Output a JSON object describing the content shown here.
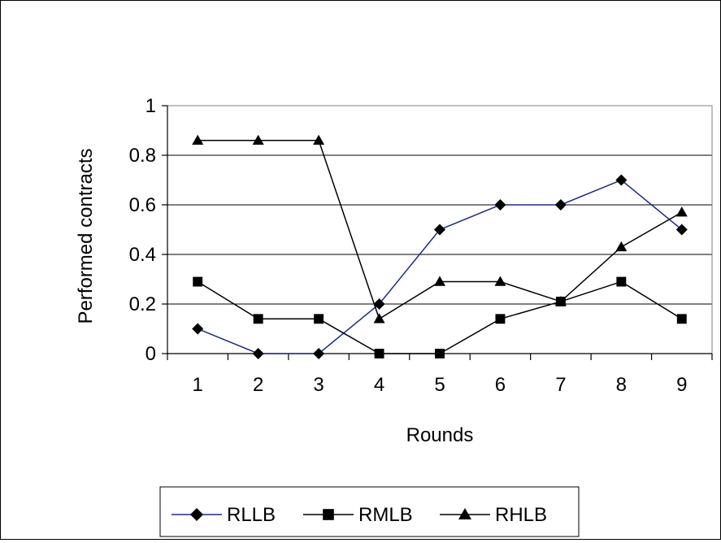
{
  "chart_data": {
    "type": "line",
    "title": "",
    "xlabel": "Rounds",
    "ylabel": "Performed contracts",
    "x": [
      1,
      2,
      3,
      4,
      5,
      6,
      7,
      8,
      9
    ],
    "categories": [
      "1",
      "2",
      "3",
      "4",
      "5",
      "6",
      "7",
      "8",
      "9"
    ],
    "ylim": [
      0,
      1
    ],
    "yticks": [
      0,
      0.2,
      0.4,
      0.6,
      0.8,
      1
    ],
    "ytick_labels": [
      "0",
      "0.2",
      "0.4",
      "0.6",
      "0.8",
      "1"
    ],
    "grid": "horizontal",
    "legend_position": "bottom",
    "series": [
      {
        "name": "RLLB",
        "marker": "diamond",
        "color": "#1f2a8c",
        "values": [
          0.1,
          0.0,
          0.0,
          0.2,
          0.5,
          0.6,
          0.6,
          0.7,
          0.5
        ]
      },
      {
        "name": "RMLB",
        "marker": "square",
        "color": "#000000",
        "values": [
          0.29,
          0.14,
          0.14,
          0.0,
          0.0,
          0.14,
          0.21,
          0.29,
          0.14
        ]
      },
      {
        "name": "RHLB",
        "marker": "triangle",
        "color": "#000000",
        "values": [
          0.86,
          0.86,
          0.86,
          0.14,
          0.29,
          0.29,
          0.21,
          0.43,
          0.57
        ]
      }
    ]
  }
}
